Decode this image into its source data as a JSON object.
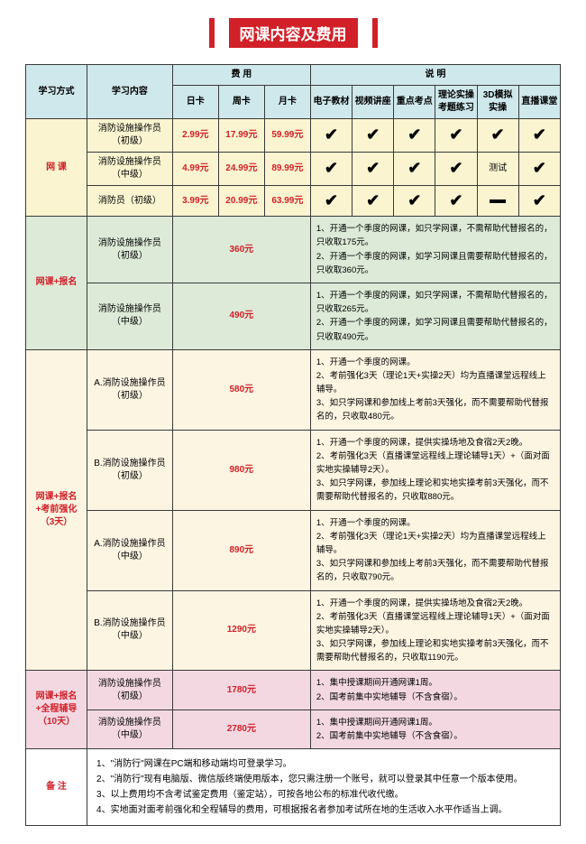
{
  "title": "网课内容及费用",
  "colors": {
    "accent": "#d12028",
    "blue_hdr": "#cfe8ec",
    "yellow": "#faf4d0",
    "green": "#dcead7",
    "cream": "#fcf5e2",
    "pink": "#f3d8e2",
    "border": "#3a3a3a"
  },
  "header": {
    "method": "学习方式",
    "content": "学习内容",
    "price_group": "费 用",
    "desc_group": "说 明",
    "price_cols": [
      "日卡",
      "周卡",
      "月卡"
    ],
    "feat_cols": [
      "电子教材",
      "视频讲座",
      "重点考点",
      "理论实操考题练习",
      "3D模拟实操",
      "直播课堂"
    ]
  },
  "sec1": {
    "label": "网 课",
    "rows": [
      {
        "content_l1": "消防设施操作员",
        "content_l2": "（初级）",
        "p1": "2.99元",
        "p2": "17.99元",
        "p3": "59.99元",
        "f": [
          "✔",
          "✔",
          "✔",
          "✔",
          "✔",
          "✔"
        ]
      },
      {
        "content_l1": "消防设施操作员",
        "content_l2": "（中级）",
        "p1": "4.99元",
        "p2": "24.99元",
        "p3": "89.99元",
        "f": [
          "✔",
          "✔",
          "✔",
          "✔",
          "测试",
          "✔"
        ]
      },
      {
        "content_l1": "消防员（初级）",
        "content_l2": "",
        "p1": "3.99元",
        "p2": "20.99元",
        "p3": "63.99元",
        "f": [
          "✔",
          "✔",
          "✔",
          "✔",
          "—",
          "✔"
        ]
      }
    ]
  },
  "sec2": {
    "label": "网课+报名",
    "rows": [
      {
        "content_l1": "消防设施操作员",
        "content_l2": "（初级）",
        "price": "360元",
        "desc": "1、开通一个季度的网课，如只学网课，不需帮助代替报名的，只收取175元。\n2、开通一个季度的网课，如学习网课且需要帮助代替报名的，只收取360元。"
      },
      {
        "content_l1": "消防设施操作员",
        "content_l2": "（中级）",
        "price": "490元",
        "desc": "1、开通一个季度的网课，如只学网课，不需帮助代替报名的，只收取265元。\n2、开通一个季度的网课，如学习网课且需要帮助代替报名的，只收取490元。"
      }
    ]
  },
  "sec3": {
    "label_l1": "网课+报名",
    "label_l2": "+考前强化",
    "label_l3": "（3天）",
    "rows": [
      {
        "content_l1": "A.消防设施操作员",
        "content_l2": "（初级）",
        "price": "580元",
        "desc": "1、开通一个季度的网课。\n2、考前强化3天（理论1天+实操2天）均为直播课堂远程线上辅导。\n3、如只学网课和参加线上考前3天强化，而不需要帮助代替报名的，只收取480元。"
      },
      {
        "content_l1": "B.消防设施操作员",
        "content_l2": "（初级）",
        "price": "980元",
        "desc": "1、开通一个季度的网课，提供实操场地及食宿2天2晚。\n2、考前强化3天（直播课堂远程线上理论辅导1天）+（面对面实地实操辅导2天）。\n3、如只学网课，参加线上理论和实地实操考前3天强化，而不需要帮助代替报名的，只收取880元。"
      },
      {
        "content_l1": "A.消防设施操作员",
        "content_l2": "（中级）",
        "price": "890元",
        "desc": "1、开通一个季度的网课。\n2、考前强化3天（理论1天+实操2天）均为直播课堂远程线上辅导。\n3、如只学网课和参加线上考前3天强化，而不需要帮助代替报名的，只收取790元。"
      },
      {
        "content_l1": "B.消防设施操作员",
        "content_l2": "（中级）",
        "price": "1290元",
        "desc": "1、开通一个季度的网课，提供实操场地及食宿2天2晚。\n2、考前强化3天（直播课堂远程线上理论辅导1天）+（面对面实地实操辅导2天）。\n3、如只学网课，参加线上理论和实地实操考前3天强化，而不需要帮助代替报名的，只收取1190元。"
      }
    ]
  },
  "sec4": {
    "label_l1": "网课+报名",
    "label_l2": "+全程辅导",
    "label_l3": "（10天）",
    "rows": [
      {
        "content_l1": "消防设施操作员",
        "content_l2": "（初级）",
        "price": "1780元",
        "desc": "1、集中授课期间开通网课1周。\n2、国考前集中实地辅导（不含食宿）。"
      },
      {
        "content_l1": "消防设施操作员",
        "content_l2": "（中级）",
        "price": "2780元",
        "desc": "1、集中授课期间开通网课1周。\n2、国考前集中实地辅导（不含食宿）。"
      }
    ]
  },
  "remark": {
    "label": "备 注",
    "text": "1、\"消防行\"网课在PC端和移动端均可登录学习。\n2、\"消防行\"现有电脑版、微信版终端使用版本，您只需注册一个账号，就可以登录其中任意一个版本使用。\n3、以上费用均不含考试鉴定费用（鉴定站），可按各地公布的标准代收代缴。\n4、实地面对面考前强化和全程辅导的费用，可根据报名者参加考试所在地的生活收入水平作适当上调。"
  }
}
